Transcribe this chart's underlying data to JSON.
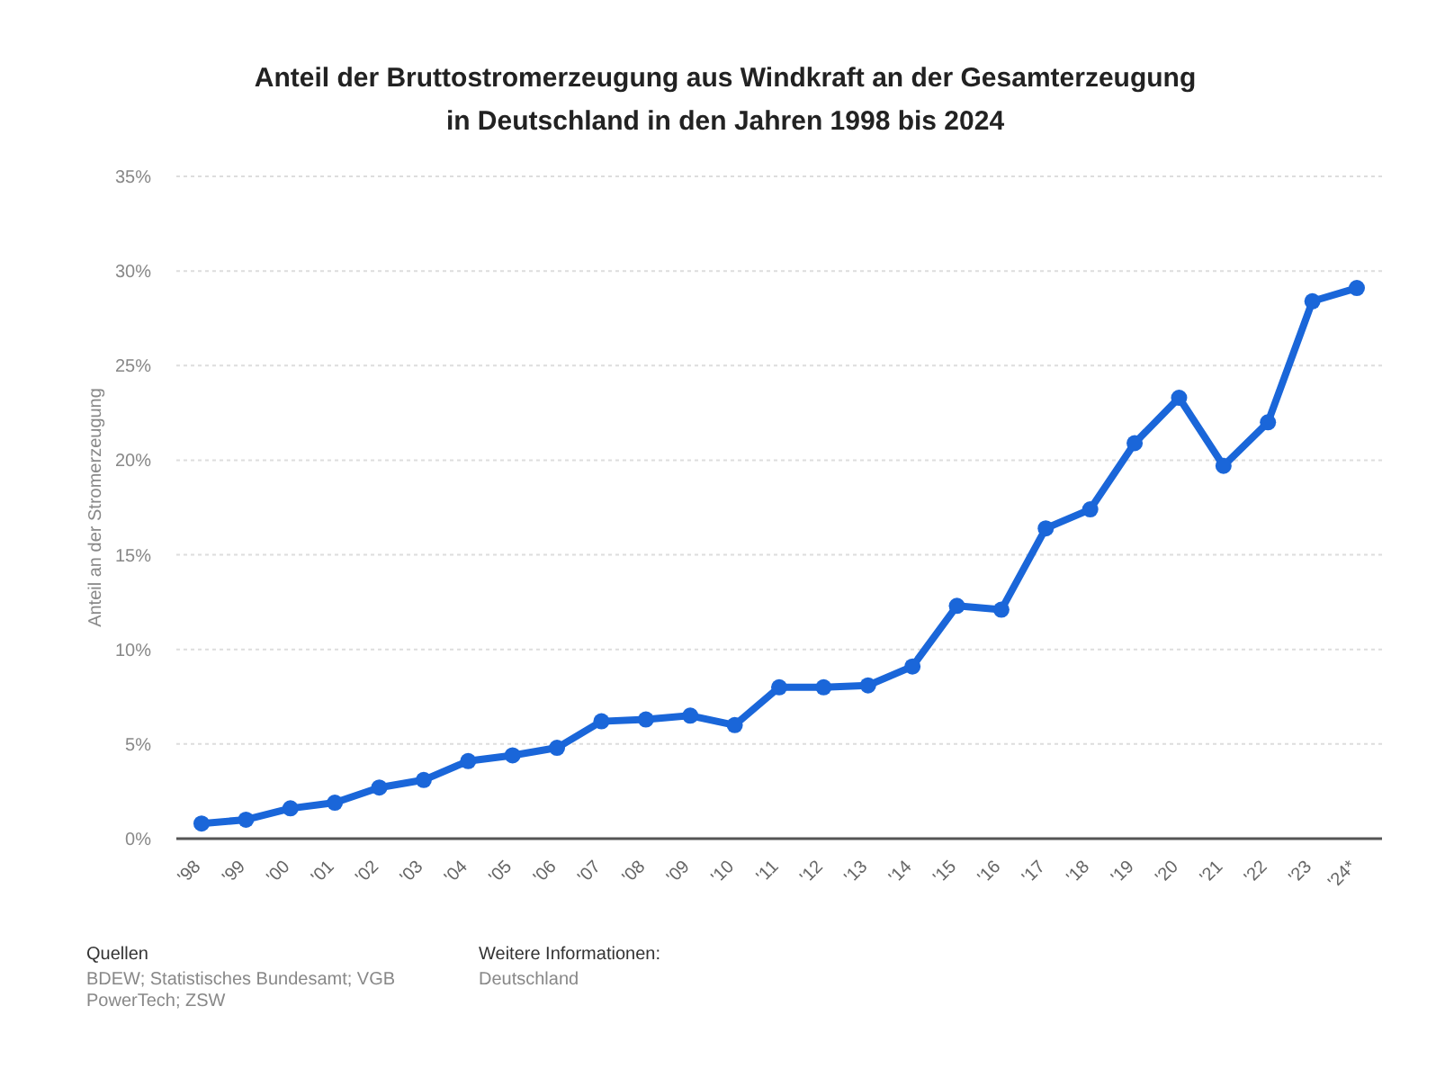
{
  "chart_data": {
    "type": "line",
    "title": "Anteil der Bruttostromerzeugung aus Windkraft an der Gesamterzeugung in Deutschland in den Jahren 1998 bis 2024",
    "ylabel": "Anteil an der Stromerzeugung",
    "categories": [
      "'98",
      "'99",
      "'00",
      "'01",
      "'02",
      "'03",
      "'04",
      "'05",
      "'06",
      "'07",
      "'08",
      "'09",
      "'10",
      "'11",
      "'12",
      "'13",
      "'14",
      "'15",
      "'16",
      "'17",
      "'18",
      "'19",
      "'20",
      "'21",
      "'22",
      "'23",
      "'24*"
    ],
    "series": [
      {
        "color": "#1a66d9",
        "values": [
          0.8,
          1.0,
          1.6,
          1.9,
          2.7,
          3.1,
          4.1,
          4.4,
          4.8,
          6.2,
          6.3,
          6.5,
          6.0,
          8.0,
          8.0,
          8.1,
          9.1,
          12.3,
          12.1,
          16.4,
          17.4,
          20.9,
          23.3,
          19.7,
          22.0,
          28.4,
          29.1
        ]
      }
    ],
    "ylim": [
      0,
      35
    ],
    "yticks": [
      {
        "value": 0,
        "label": "0%"
      },
      {
        "value": 5,
        "label": "5%"
      },
      {
        "value": 10,
        "label": "10%"
      },
      {
        "value": 15,
        "label": "15%"
      },
      {
        "value": 20,
        "label": "20%"
      },
      {
        "value": 25,
        "label": "25%"
      },
      {
        "value": 30,
        "label": "30%"
      },
      {
        "value": 35,
        "label": "35%"
      }
    ],
    "grid": "y",
    "marker": "circle",
    "line_style": "solid",
    "annotations": [
      "Quellen",
      "BDEW; Statistisches Bundesamt; VGB PowerTech; ZSW",
      "Weitere Informationen:",
      "Deutschland"
    ]
  }
}
